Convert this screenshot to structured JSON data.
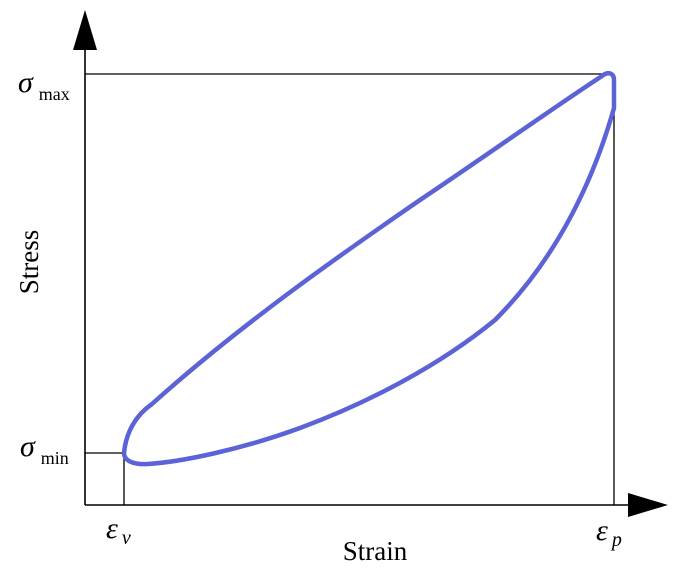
{
  "axes": {
    "y_label": "Stress",
    "x_label": "Strain"
  },
  "markers": {
    "sigma_max": {
      "symbol": "σ",
      "sub": "max"
    },
    "sigma_min": {
      "symbol": "σ",
      "sub": "min"
    },
    "epsilon_v": {
      "symbol": "ε",
      "sub": "v"
    },
    "epsilon_p": {
      "symbol": "ε",
      "sub": "p"
    }
  },
  "style": {
    "curve_color": "#5b63d6",
    "axis_color": "#000000"
  }
}
